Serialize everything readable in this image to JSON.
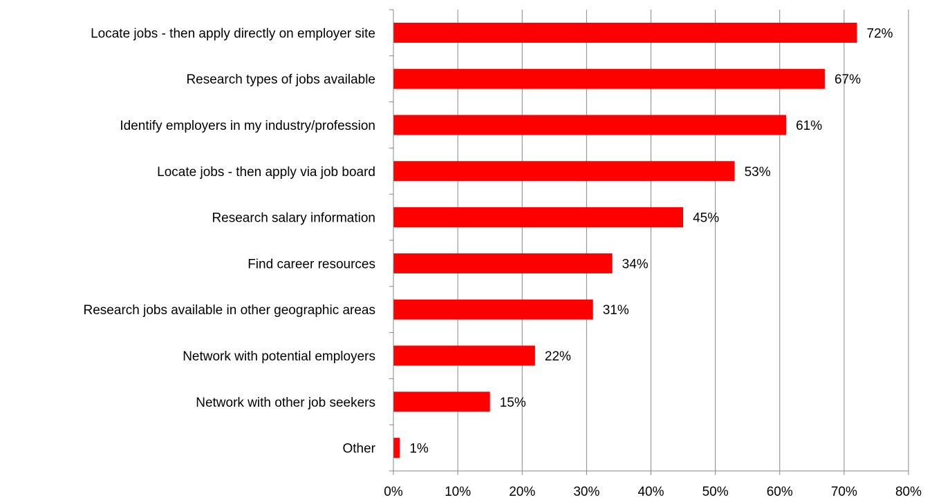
{
  "chart_data": {
    "type": "bar",
    "orientation": "horizontal",
    "title": "",
    "xlabel": "",
    "ylabel": "",
    "categories": [
      "Locate jobs - then apply directly on employer site",
      "Research types of jobs available",
      "Identify employers in my industry/profession",
      "Locate jobs - then apply via job board",
      "Research salary information",
      "Find career resources",
      "Research jobs available in other geographic areas",
      "Network with potential employers",
      "Network with other job seekers",
      "Other"
    ],
    "values": [
      72,
      67,
      61,
      53,
      45,
      34,
      31,
      22,
      15,
      1
    ],
    "value_labels": [
      "72%",
      "67%",
      "61%",
      "53%",
      "45%",
      "34%",
      "31%",
      "22%",
      "15%",
      "1%"
    ],
    "xlim": [
      0,
      80
    ],
    "xticks": [
      0,
      10,
      20,
      30,
      40,
      50,
      60,
      70,
      80
    ],
    "xtick_labels": [
      "0%",
      "10%",
      "20%",
      "30%",
      "40%",
      "50%",
      "60%",
      "70%",
      "80%"
    ],
    "grid": "vertical",
    "legend": "none",
    "bar_color": "#ff0000",
    "grid_color": "#868686"
  }
}
